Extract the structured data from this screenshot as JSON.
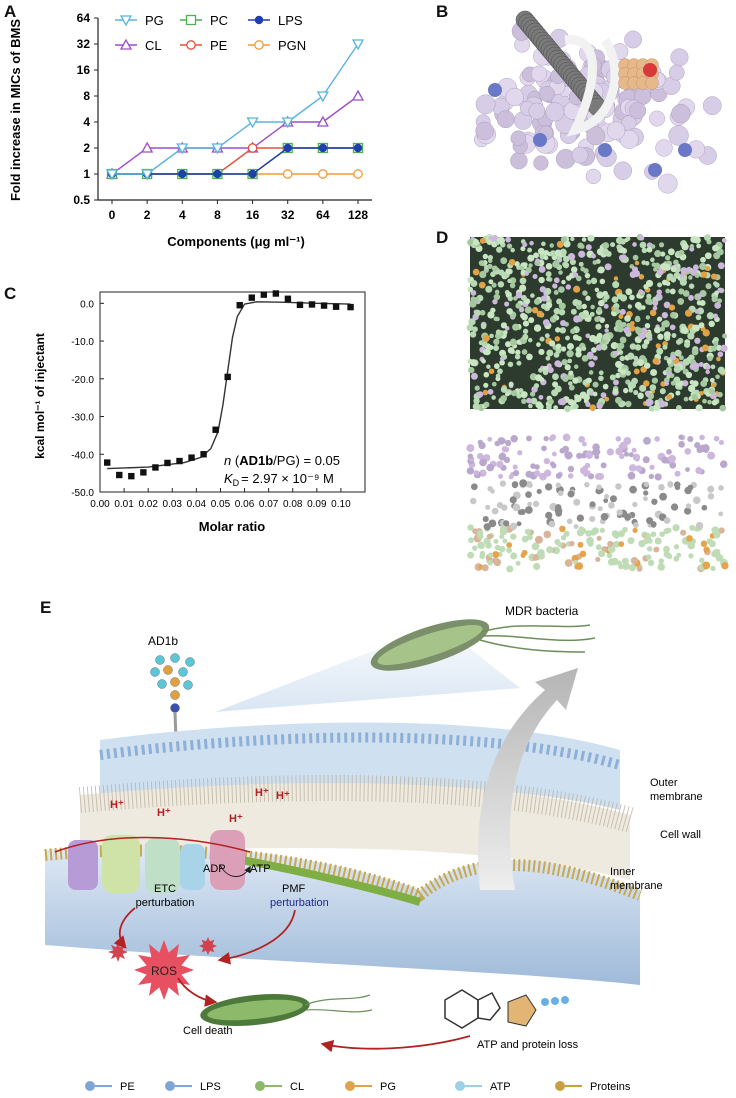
{
  "panels": {
    "a": "A",
    "b": "B",
    "c": "C",
    "d": "D",
    "e": "E"
  },
  "chart_data": [
    {
      "type": "line",
      "ylabel": "Fold increase in MICs of BMS",
      "xlabel": "Components (μg ml⁻¹)",
      "categories": [
        "0",
        "2",
        "4",
        "8",
        "16",
        "32",
        "64",
        "128"
      ],
      "yscale": "log2",
      "yticks": [
        "0.5",
        "1",
        "2",
        "4",
        "8",
        "16",
        "32",
        "64"
      ],
      "ylim": [
        0.5,
        64
      ],
      "legend_placement": "top",
      "series": [
        {
          "name": "PG",
          "marker": "triangle-down",
          "color": "#5ab4e0",
          "values": [
            1,
            1,
            2,
            2,
            4,
            4,
            8,
            32
          ]
        },
        {
          "name": "PC",
          "marker": "square",
          "color": "#4caf50",
          "values": [
            1,
            1,
            1,
            1,
            1,
            2,
            2,
            2
          ]
        },
        {
          "name": "LPS",
          "marker": "circle-filled",
          "color": "#1f3fae",
          "values": [
            1,
            1,
            1,
            1,
            1,
            2,
            2,
            2
          ]
        },
        {
          "name": "CL",
          "marker": "triangle-up",
          "color": "#9c4fc8",
          "values": [
            1,
            2,
            2,
            2,
            2,
            4,
            4,
            8
          ]
        },
        {
          "name": "PE",
          "marker": "circle",
          "color": "#e6513a",
          "values": [
            1,
            1,
            1,
            1,
            2,
            2,
            2,
            2
          ]
        },
        {
          "name": "PGN",
          "marker": "circle",
          "color": "#f29a3a",
          "values": [
            1,
            1,
            1,
            1,
            1,
            1,
            1,
            1
          ]
        }
      ]
    },
    {
      "type": "scatter",
      "xlabel": "Molar ratio",
      "ylabel": "kcal mol⁻¹ of injectant",
      "xlim": [
        0,
        0.11
      ],
      "ylim": [
        -50,
        3
      ],
      "xticks": [
        "0.00",
        "0.01",
        "0.02",
        "0.03",
        "0.04",
        "0.05",
        "0.06",
        "0.07",
        "0.08",
        "0.09",
        "0.10"
      ],
      "yticks": [
        "0.0",
        "-10.0",
        "-20.0",
        "-30.0",
        "-40.0",
        "-50.0"
      ],
      "points": {
        "x": [
          0.003,
          0.008,
          0.013,
          0.018,
          0.023,
          0.028,
          0.033,
          0.038,
          0.043,
          0.048,
          0.053,
          0.058,
          0.063,
          0.068,
          0.073,
          0.078,
          0.083,
          0.088,
          0.093,
          0.098,
          0.104
        ],
        "y": [
          -42.2,
          -45.5,
          -45.8,
          -44.8,
          -43.5,
          -42.3,
          -41.8,
          -40.9,
          -40.0,
          -33.5,
          -19.5,
          -0.5,
          1.5,
          2.3,
          2.6,
          1.2,
          -0.4,
          -0.3,
          -0.6,
          -0.9,
          -1.0
        ]
      },
      "fit": {
        "x": [
          0.003,
          0.02,
          0.035,
          0.042,
          0.046,
          0.049,
          0.051,
          0.053,
          0.055,
          0.057,
          0.06,
          0.065,
          0.075,
          0.09,
          0.104
        ],
        "y": [
          -43.8,
          -43.4,
          -42.2,
          -40.8,
          -38.5,
          -34,
          -27,
          -18,
          -9,
          -3.5,
          -0.2,
          0.4,
          0.3,
          0,
          -0.2
        ]
      },
      "annotation_line1": "n (AD1b/PG) = 0.05",
      "annotation_n": "n",
      "annotation_compound": "AD1b",
      "annotation_ratio_rest": "/PG) = 0.05",
      "annotation_kd_sym": "K",
      "annotation_kd_sub": "D",
      "annotation_kd_val": "= 2.97 × 10⁻⁹ M"
    }
  ],
  "panel_e": {
    "labels": {
      "ad1b": "AD1b",
      "mdr": "MDR bacteria",
      "outer": "Outer",
      "membrane1": "membrane",
      "cellwall": "Cell wall",
      "inner": "Inner",
      "membrane2": "membrane",
      "adp": "ADP",
      "atp": "ATP",
      "pmf": "PMF",
      "perturb_pmf": "perturbation",
      "etc": "ETC",
      "perturb_etc": "perturbation",
      "ros": "ROS",
      "celldeath": "Cell death",
      "atploss": "ATP and protein loss",
      "hplus": "H⁺"
    },
    "legend": [
      "PE",
      "LPS",
      "CL",
      "PG",
      "ATP",
      "Proteins"
    ]
  }
}
